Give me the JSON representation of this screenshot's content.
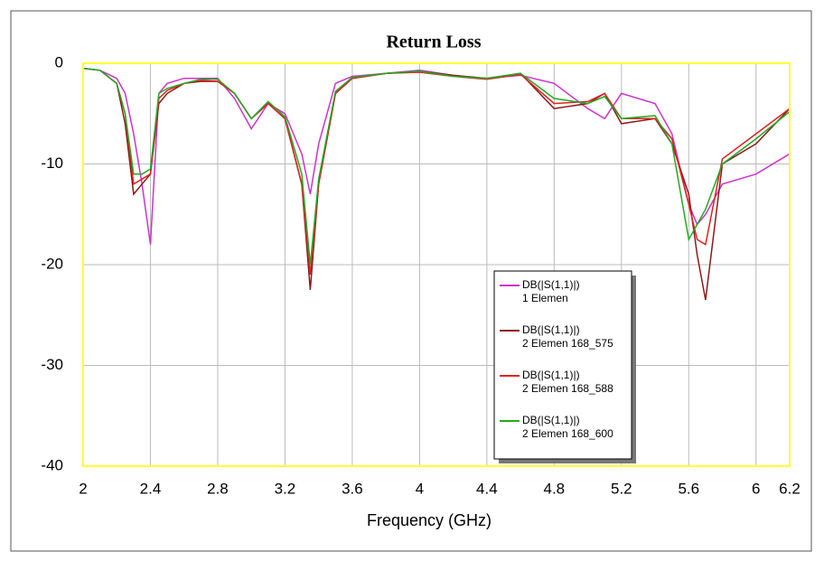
{
  "chart_data": {
    "type": "line",
    "title": "Return Loss",
    "x_label": "Frequency (GHz)",
    "x": [
      2,
      2.1,
      2.2,
      2.25,
      2.3,
      2.35,
      2.4,
      2.45,
      2.5,
      2.6,
      2.7,
      2.8,
      2.9,
      3.0,
      3.1,
      3.2,
      3.3,
      3.35,
      3.4,
      3.5,
      3.6,
      3.8,
      4.0,
      4.2,
      4.4,
      4.6,
      4.8,
      5.0,
      5.1,
      5.2,
      5.4,
      5.5,
      5.6,
      5.65,
      5.7,
      5.8,
      6.0,
      6.2
    ],
    "series": [
      {
        "name": "DB(|S(1,1)|)",
        "subname": "1 Elemen",
        "color": "#cc33cc",
        "values": [
          -0.5,
          -0.7,
          -1.5,
          -3,
          -7,
          -12,
          -18,
          -3,
          -2,
          -1.5,
          -1.5,
          -1.5,
          -3.5,
          -6.5,
          -4,
          -5,
          -9,
          -13,
          -8,
          -2,
          -1.3,
          -1,
          -0.7,
          -1.2,
          -1.5,
          -1.2,
          -2,
          -4.5,
          -5.5,
          -3,
          -4,
          -7,
          -14,
          -16,
          -15,
          -12,
          -11,
          -9
        ]
      },
      {
        "name": "DB(|S(1,1)|)",
        "subname": "2 Elemen 168_575",
        "color": "#8b1a1a",
        "values": [
          -0.5,
          -0.7,
          -2,
          -6,
          -13,
          -12,
          -11,
          -4,
          -3,
          -2,
          -1.8,
          -1.8,
          -3,
          -5.5,
          -4,
          -5.5,
          -12,
          -22.5,
          -12,
          -3,
          -1.5,
          -1,
          -0.8,
          -1.2,
          -1.5,
          -1,
          -4.5,
          -4,
          -3,
          -6,
          -5.5,
          -8,
          -13,
          -19,
          -23.5,
          -10,
          -8,
          -4.5
        ]
      },
      {
        "name": "DB(|S(1,1)|)",
        "subname": "2 Elemen 168_588",
        "color": "#e02020",
        "values": [
          -0.5,
          -0.7,
          -2,
          -5,
          -12,
          -11.5,
          -11,
          -3.5,
          -2.7,
          -2,
          -1.7,
          -1.8,
          -3,
          -5.5,
          -4,
          -5.5,
          -12,
          -21,
          -12,
          -3,
          -1.5,
          -1,
          -0.9,
          -1.3,
          -1.6,
          -1.1,
          -4,
          -3.8,
          -3,
          -5.5,
          -5.5,
          -7.5,
          -14,
          -17.5,
          -18,
          -9.5,
          -7,
          -4.5
        ]
      },
      {
        "name": "DB(|S(1,1)|)",
        "subname": "2 Elemen 168_600",
        "color": "#22aa22",
        "values": [
          -0.5,
          -0.7,
          -2,
          -5,
          -11,
          -11,
          -10.5,
          -3,
          -2.5,
          -2,
          -1.6,
          -1.6,
          -3,
          -5.5,
          -3.8,
          -5.3,
          -11,
          -20,
          -11.5,
          -2.8,
          -1.4,
          -1,
          -0.8,
          -1.3,
          -1.5,
          -1,
          -3.5,
          -4,
          -3.3,
          -5.5,
          -5.2,
          -8,
          -17.5,
          -16,
          -14.5,
          -10,
          -7.5,
          -4.8
        ]
      }
    ],
    "xlim": [
      2,
      6.2
    ],
    "xticks": [
      2,
      2.4,
      2.8,
      3.2,
      3.6,
      4,
      4.4,
      4.8,
      5.2,
      5.6,
      6,
      6.2
    ],
    "ylim": [
      -40,
      0
    ],
    "yticks": [
      0,
      -10,
      -20,
      -30,
      -40
    ],
    "grid": true
  }
}
